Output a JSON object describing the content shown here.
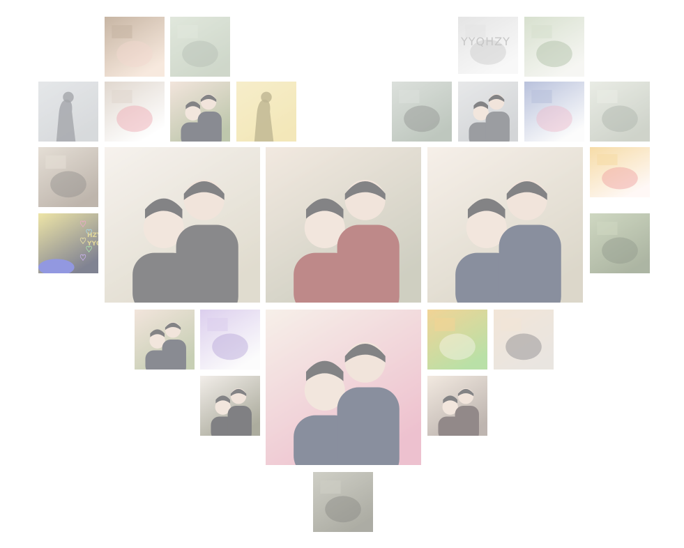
{
  "collage": {
    "shape": "heart",
    "background": "#ffffff",
    "tiles": [
      {
        "name": "photo-pink-tree-illustration",
        "palette": [
          "#f2d8c4",
          "#e8b8a8",
          "#9a7a5a"
        ]
      },
      {
        "name": "photo-map-game-screen",
        "palette": [
          "#a8b8a0",
          "#7a8a78",
          "#c8d4c0"
        ]
      },
      {
        "name": "photo-kiss-shadow-wall",
        "palette": [
          "#b8bcc0",
          "#5a5e66",
          "#d0d4d8"
        ]
      },
      {
        "name": "photo-heart-frame-portraits",
        "palette": [
          "#ffffff",
          "#e06070",
          "#c8b8a8"
        ]
      },
      {
        "name": "photo-couple-garden-selfie-small",
        "palette": [
          "#8a9a6a",
          "#2a2e3a",
          "#e8d0c0"
        ]
      },
      {
        "name": "photo-yellow-wall-shadow",
        "palette": [
          "#ead580",
          "#8a7a3a",
          "#f0e0a0"
        ]
      },
      {
        "name": "photo-yyhzy-pencil-text",
        "palette": [
          "#f4f4f4",
          "#a0a0a0",
          "#d0d0d0"
        ],
        "text": "YYQHZY"
      },
      {
        "name": "photo-green-plant-card",
        "palette": [
          "#f0f0ea",
          "#6a8a5a",
          "#b8c8a8"
        ]
      },
      {
        "name": "photo-boat-ride-feet",
        "palette": [
          "#8a9a8a",
          "#3a3e3a",
          "#c0c8c0"
        ]
      },
      {
        "name": "photo-shadow-couple-wall",
        "palette": [
          "#b0b4b8",
          "#4a4e56",
          "#d4d6d8"
        ]
      },
      {
        "name": "photo-pink-handwriting-note",
        "palette": [
          "#fafafa",
          "#e080a0",
          "#8090c0"
        ]
      },
      {
        "name": "photo-pixel-game-map",
        "palette": [
          "#a8b0a0",
          "#6a7868",
          "#d8ddd0"
        ]
      },
      {
        "name": "photo-room-screens",
        "palette": [
          "#8a7a6a",
          "#3a3630",
          "#d0c4b4"
        ]
      },
      {
        "name": "photo-birthday-card",
        "palette": [
          "#fff4f0",
          "#e05050",
          "#f0c060"
        ]
      },
      {
        "name": "photo-neon-hearts-dark",
        "palette": [
          "#1a1e3a",
          "#3a44c8",
          "#e0d060"
        ],
        "text": "HZY\nYYQ"
      },
      {
        "name": "photo-garden-hedgehog",
        "palette": [
          "#6a7a58",
          "#3a4a30",
          "#a8b890"
        ]
      },
      {
        "name": "photo-map-sign-masked-couple",
        "palette": [
          "#c8c0a8",
          "#2a2a2e",
          "#f0e8e0"
        ]
      },
      {
        "name": "photo-couple-red-hoodie-selfie",
        "palette": [
          "#a8a890",
          "#8a2a2a",
          "#e8d8c8"
        ]
      },
      {
        "name": "photo-couple-navy-hoodie-trees",
        "palette": [
          "#c0b8a0",
          "#2a3450",
          "#f0e4d8"
        ]
      },
      {
        "name": "photo-couple-garden-small",
        "palette": [
          "#9aa878",
          "#2a2e3a",
          "#e8d0c0"
        ]
      },
      {
        "name": "photo-purple-calligraphy",
        "palette": [
          "#fafafa",
          "#7a5ab8",
          "#c0a8e0"
        ]
      },
      {
        "name": "photo-couple-azaleas-peace",
        "palette": [
          "#e090a8",
          "#2a3450",
          "#f0e4d8"
        ]
      },
      {
        "name": "photo-cartoon-cow-game",
        "palette": [
          "#80c860",
          "#f4f0e0",
          "#e8b040"
        ]
      },
      {
        "name": "photo-holding-hands",
        "palette": [
          "#d8d0c8",
          "#2a2a2e",
          "#e8d0b8"
        ]
      },
      {
        "name": "photo-couple-masks-night",
        "palette": [
          "#6a6a50",
          "#1a1a1e",
          "#e8e0d8"
        ]
      },
      {
        "name": "photo-couple-dark-jackets",
        "palette": [
          "#8a7a70",
          "#3a2a2a",
          "#e8d8c8"
        ]
      },
      {
        "name": "photo-tree-stump-forest",
        "palette": [
          "#6a6a5a",
          "#2a2a22",
          "#a8a898"
        ]
      }
    ]
  }
}
